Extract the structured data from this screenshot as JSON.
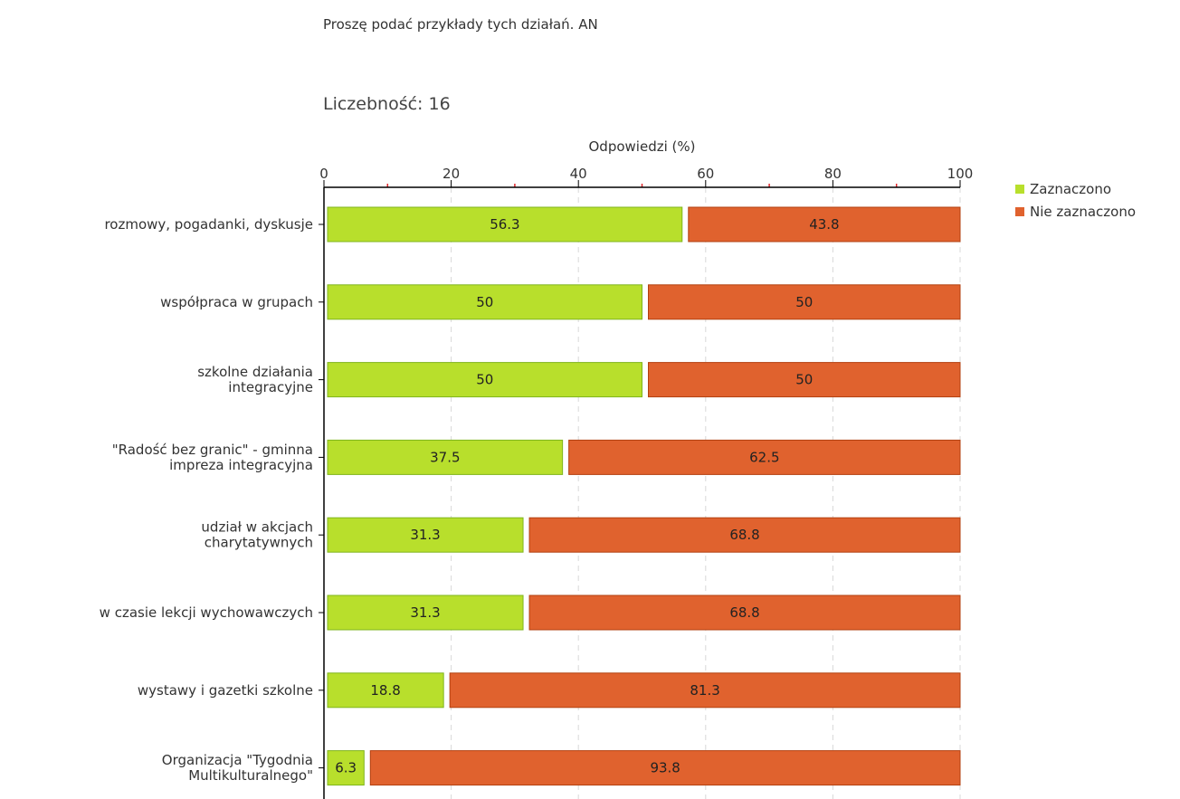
{
  "header": {
    "question": "Proszę podać przykłady tych działań. AN",
    "count": "Liczebność: 16"
  },
  "chart_data": {
    "type": "bar",
    "orientation": "horizontal",
    "stacked": true,
    "xlabel": "Odpowiedzi (%)",
    "xlim": [
      0,
      100
    ],
    "xticks": [
      0,
      20,
      40,
      60,
      80,
      100
    ],
    "grid": true,
    "legend_position": "top-right",
    "categories": [
      [
        "rozmowy, pogadanki, dyskusje"
      ],
      [
        "współpraca w grupach"
      ],
      [
        "szkolne działania",
        "integracyjne"
      ],
      [
        "\"Radość bez granic\" - gminna",
        "impreza integracyjna"
      ],
      [
        "udział w akcjach",
        "charytatywnych"
      ],
      [
        "w czasie lekcji wychowawczych"
      ],
      [
        "wystawy i gazetki szkolne"
      ],
      [
        "Organizacja \"Tygodnia",
        "Multikulturalnego\""
      ]
    ],
    "series": [
      {
        "name": "Zaznaczono",
        "color": "#b8df2c",
        "stroke": "#7fb51c",
        "values": [
          56.3,
          50,
          50,
          37.5,
          31.3,
          31.3,
          18.8,
          6.3
        ]
      },
      {
        "name": "Nie zaznaczono",
        "color": "#e0622e",
        "stroke": "#b24010",
        "values": [
          43.8,
          50,
          50,
          62.5,
          68.8,
          68.8,
          81.3,
          93.8
        ]
      }
    ]
  }
}
